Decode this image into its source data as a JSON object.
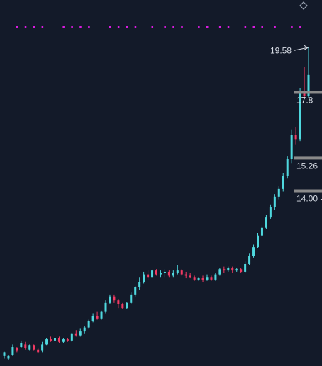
{
  "chart_data": {
    "type": "candlestick",
    "title": "",
    "xlabel": "",
    "ylabel": "",
    "ylim": [
      7.4,
      20.3
    ],
    "colors": {
      "background": "#131a29",
      "up": "#4fd8de",
      "down": "#f23a63",
      "marker": "#d91be0",
      "level_line": "#8a8a8a",
      "text": "#d8dde6"
    },
    "icons": {
      "corner": "diamond-icon"
    },
    "max_label": "19.58",
    "price_levels": [
      {
        "label": "17.8",
        "value": 17.8
      },
      {
        "label": "15.26",
        "value": 15.26
      },
      {
        "label": "14.00 -",
        "value": 14.0
      }
    ],
    "event_marker_count": 32,
    "candles": [
      [
        7.65,
        7.8,
        7.55,
        7.82
      ],
      [
        7.55,
        7.65,
        7.5,
        7.7
      ],
      [
        7.7,
        8.0,
        7.65,
        8.1
      ],
      [
        7.95,
        7.85,
        7.8,
        8.0
      ],
      [
        8.0,
        8.15,
        7.95,
        8.25
      ],
      [
        8.1,
        7.95,
        7.9,
        8.2
      ],
      [
        7.9,
        8.05,
        7.85,
        8.1
      ],
      [
        8.05,
        7.9,
        7.85,
        8.1
      ],
      [
        7.9,
        7.8,
        7.75,
        7.95
      ],
      [
        7.85,
        8.1,
        7.8,
        8.2
      ],
      [
        8.1,
        8.3,
        8.05,
        8.35
      ],
      [
        8.3,
        8.25,
        8.2,
        8.4
      ],
      [
        8.25,
        8.35,
        8.2,
        8.4
      ],
      [
        8.35,
        8.2,
        8.15,
        8.4
      ],
      [
        8.2,
        8.3,
        8.15,
        8.35
      ],
      [
        8.3,
        8.25,
        8.2,
        8.35
      ],
      [
        8.25,
        8.5,
        8.2,
        8.55
      ],
      [
        8.5,
        8.45,
        8.4,
        8.65
      ],
      [
        8.45,
        8.6,
        8.4,
        8.7
      ],
      [
        8.6,
        8.75,
        8.5,
        8.8
      ],
      [
        8.75,
        9.0,
        8.7,
        9.05
      ],
      [
        9.0,
        9.2,
        8.95,
        9.3
      ],
      [
        9.2,
        9.1,
        9.05,
        9.35
      ],
      [
        9.1,
        9.35,
        9.05,
        9.4
      ],
      [
        9.35,
        9.7,
        9.3,
        9.8
      ],
      [
        9.7,
        9.95,
        9.65,
        10.0
      ],
      [
        9.95,
        9.8,
        9.7,
        10.0
      ],
      [
        9.8,
        9.65,
        9.5,
        9.85
      ],
      [
        9.65,
        9.5,
        9.45,
        9.7
      ],
      [
        9.5,
        9.7,
        9.45,
        9.75
      ],
      [
        9.7,
        10.0,
        9.65,
        10.1
      ],
      [
        10.0,
        10.3,
        9.95,
        10.35
      ],
      [
        10.3,
        10.5,
        10.2,
        10.7
      ],
      [
        10.5,
        10.8,
        10.45,
        10.9
      ],
      [
        10.8,
        10.7,
        10.6,
        10.95
      ],
      [
        10.7,
        10.95,
        10.65,
        11.0
      ],
      [
        10.95,
        10.8,
        10.75,
        11.0
      ],
      [
        10.8,
        10.85,
        10.7,
        10.95
      ],
      [
        10.85,
        10.9,
        10.7,
        11.0
      ],
      [
        10.9,
        10.75,
        10.7,
        10.95
      ],
      [
        10.75,
        10.85,
        10.7,
        10.95
      ],
      [
        10.85,
        10.95,
        10.8,
        11.15
      ],
      [
        10.95,
        10.8,
        10.75,
        11.0
      ],
      [
        10.8,
        10.75,
        10.65,
        10.9
      ],
      [
        10.75,
        10.7,
        10.65,
        10.85
      ],
      [
        10.7,
        10.6,
        10.55,
        10.75
      ],
      [
        10.6,
        10.65,
        10.55,
        10.7
      ],
      [
        10.65,
        10.6,
        10.5,
        10.75
      ],
      [
        10.6,
        10.7,
        10.55,
        10.8
      ],
      [
        10.7,
        10.6,
        10.55,
        10.75
      ],
      [
        10.6,
        10.8,
        10.55,
        10.85
      ],
      [
        10.8,
        11.0,
        10.75,
        11.05
      ],
      [
        11.0,
        10.95,
        10.85,
        11.1
      ],
      [
        10.95,
        11.05,
        10.9,
        11.1
      ],
      [
        11.05,
        10.95,
        10.85,
        11.1
      ],
      [
        10.95,
        11.0,
        10.9,
        11.05
      ],
      [
        11.0,
        10.9,
        10.85,
        11.05
      ],
      [
        10.9,
        11.2,
        10.85,
        11.3
      ],
      [
        11.2,
        11.5,
        11.15,
        11.6
      ],
      [
        11.5,
        11.85,
        11.45,
        11.95
      ],
      [
        11.85,
        12.3,
        11.8,
        12.4
      ],
      [
        12.3,
        12.6,
        12.25,
        12.7
      ],
      [
        12.6,
        13.0,
        12.55,
        13.1
      ],
      [
        13.0,
        13.4,
        12.95,
        13.5
      ],
      [
        13.4,
        13.8,
        13.3,
        13.9
      ],
      [
        13.8,
        14.1,
        13.7,
        14.2
      ],
      [
        14.1,
        14.6,
        14.0,
        14.7
      ],
      [
        14.6,
        15.26,
        14.5,
        15.35
      ],
      [
        15.26,
        16.2,
        15.1,
        16.4
      ],
      [
        16.2,
        16.0,
        15.8,
        16.5
      ],
      [
        16.0,
        17.8,
        15.95,
        18.0
      ],
      [
        17.8,
        17.7,
        17.6,
        18.8
      ],
      [
        17.7,
        18.5,
        17.6,
        19.58
      ]
    ]
  }
}
